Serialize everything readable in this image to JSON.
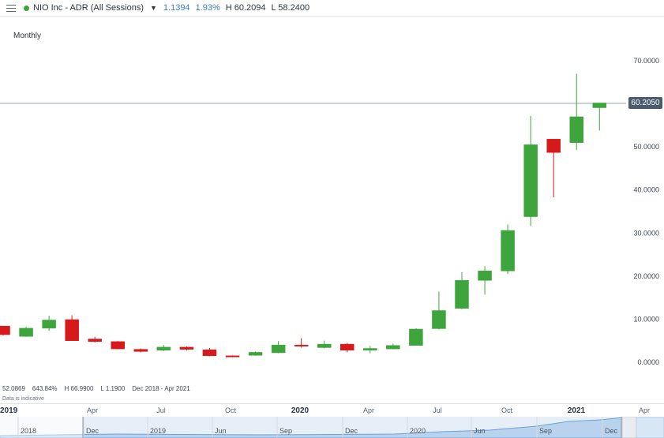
{
  "header": {
    "instrument": "NIO Inc - ADR (All Sessions)",
    "change": "1.1394",
    "change_pct": "1.93%",
    "high": "H 60.2094",
    "low": "L 58.2400",
    "live_color": "#3ea53c"
  },
  "interval": "Monthly",
  "last_price": "60.2050",
  "stats": {
    "start": "52.0869",
    "pct": "643.84%",
    "high": "H 66.9900",
    "low": "L 1.1900",
    "range": "Dec 2018 - Apr 2021"
  },
  "disclaimer": "Data is indicative",
  "colors": {
    "up": "#3ea53c",
    "down": "#d7191c",
    "last_line": "#9aa3ad"
  },
  "navigator_labels": [
    "2018",
    "Dec",
    "2019",
    "Jun",
    "Sep",
    "Dec",
    "2020",
    "Jun",
    "Sep",
    "Dec"
  ],
  "chart_data": {
    "type": "candlestick",
    "interval": "Monthly",
    "y_ticks": [
      "70.0000",
      "60.0000",
      "50.0000",
      "40.0000",
      "30.0000",
      "20.0000",
      "10.0000",
      "0.0000"
    ],
    "ylim": [
      -3,
      78
    ],
    "x_labels": [
      "2019",
      "Apr",
      "Jul",
      "Oct",
      "2020",
      "Apr",
      "Jul",
      "Oct",
      "2021",
      "Apr"
    ],
    "last_price": 60.205,
    "candles": [
      {
        "date": "2018-12",
        "open": 8.4,
        "high": 8.4,
        "low": 6.2,
        "close": 6.4
      },
      {
        "date": "2019-01",
        "open": 6.0,
        "high": 8.2,
        "low": 5.9,
        "close": 7.9
      },
      {
        "date": "2019-02",
        "open": 7.9,
        "high": 10.8,
        "low": 7.3,
        "close": 9.8
      },
      {
        "date": "2019-03",
        "open": 9.9,
        "high": 10.9,
        "low": 5.0,
        "close": 5.0
      },
      {
        "date": "2019-04",
        "open": 5.4,
        "high": 5.9,
        "low": 4.6,
        "close": 4.8
      },
      {
        "date": "2019-05",
        "open": 4.8,
        "high": 4.9,
        "low": 3.0,
        "close": 3.1
      },
      {
        "date": "2019-06",
        "open": 3.0,
        "high": 3.2,
        "low": 2.3,
        "close": 2.5
      },
      {
        "date": "2019-07",
        "open": 2.8,
        "high": 4.0,
        "low": 2.6,
        "close": 3.5
      },
      {
        "date": "2019-08",
        "open": 3.5,
        "high": 3.7,
        "low": 2.7,
        "close": 3.0
      },
      {
        "date": "2019-09",
        "open": 2.9,
        "high": 3.3,
        "low": 1.4,
        "close": 1.5
      },
      {
        "date": "2019-10",
        "open": 1.5,
        "high": 1.6,
        "low": 1.19,
        "close": 1.4
      },
      {
        "date": "2019-11",
        "open": 1.6,
        "high": 2.5,
        "low": 1.5,
        "close": 2.3
      },
      {
        "date": "2019-12",
        "open": 2.2,
        "high": 4.9,
        "low": 2.1,
        "close": 4.0
      },
      {
        "date": "2020-01",
        "open": 4.0,
        "high": 5.6,
        "low": 3.4,
        "close": 3.8
      },
      {
        "date": "2020-02",
        "open": 3.4,
        "high": 5.0,
        "low": 3.2,
        "close": 4.2
      },
      {
        "date": "2020-03",
        "open": 4.2,
        "high": 4.5,
        "low": 2.3,
        "close": 2.8
      },
      {
        "date": "2020-04",
        "open": 2.8,
        "high": 3.8,
        "low": 2.1,
        "close": 3.2
      },
      {
        "date": "2020-05",
        "open": 3.1,
        "high": 4.3,
        "low": 3.0,
        "close": 3.9
      },
      {
        "date": "2020-06",
        "open": 3.9,
        "high": 7.9,
        "low": 3.9,
        "close": 7.7
      },
      {
        "date": "2020-07",
        "open": 7.8,
        "high": 16.4,
        "low": 7.6,
        "close": 12.0
      },
      {
        "date": "2020-08",
        "open": 12.5,
        "high": 20.9,
        "low": 12.3,
        "close": 19.0
      },
      {
        "date": "2020-09",
        "open": 19.0,
        "high": 22.3,
        "low": 15.7,
        "close": 21.2
      },
      {
        "date": "2020-10",
        "open": 21.2,
        "high": 32.0,
        "low": 20.5,
        "close": 30.6
      },
      {
        "date": "2020-11",
        "open": 33.8,
        "high": 57.2,
        "low": 31.6,
        "close": 50.5
      },
      {
        "date": "2020-12",
        "open": 51.8,
        "high": 51.8,
        "low": 38.3,
        "close": 48.7
      },
      {
        "date": "2021-01",
        "open": 51.0,
        "high": 66.99,
        "low": 49.3,
        "close": 57.0
      },
      {
        "date": "2021-02",
        "open": 59.1,
        "high": 60.21,
        "low": 53.8,
        "close": 60.2
      }
    ]
  }
}
